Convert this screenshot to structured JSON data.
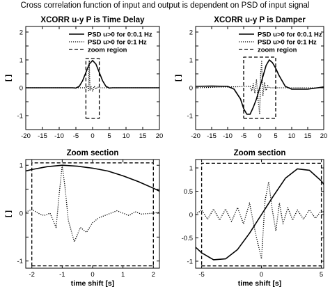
{
  "figure_title": "Cross correlation function of input and output is dependent on PSD of input signal",
  "chart_data": [
    {
      "type": "line",
      "title": "XCORR u-y P is Time Delay",
      "xlabel": "",
      "ylabel": "[ ]",
      "xlim": [
        -20,
        20
      ],
      "ylim": [
        -1.5,
        2.2
      ],
      "xticks": [
        -20,
        -15,
        -10,
        -5,
        0,
        5,
        10,
        15,
        20
      ],
      "yticks": [
        -1.5,
        -1,
        -0.5,
        0,
        0.5,
        1,
        1.5,
        2
      ],
      "ytick_labels": [
        "",
        "-1",
        "",
        "0",
        "",
        "1",
        "",
        "2"
      ],
      "legend": {
        "position": "top-right",
        "entries": [
          "PSD u>0 for 0:0.1 Hz",
          "PSD u>0 for 0:1 Hz",
          "zoom region"
        ]
      },
      "series": [
        {
          "name": "PSD u>0 for 0:0.1 Hz",
          "style": "solid",
          "x": [
            -20,
            -6,
            -5,
            -4,
            -3,
            -2,
            -1,
            0,
            1,
            2,
            3,
            4,
            5,
            6,
            20
          ],
          "y": [
            0,
            0,
            -0.01,
            0.05,
            0.25,
            0.55,
            0.85,
            0.98,
            0.85,
            0.55,
            0.25,
            0.05,
            -0.01,
            0,
            0
          ]
        },
        {
          "name": "PSD u>0 for 0:1 Hz",
          "style": "dotted",
          "x": [
            -20,
            -2,
            -1.5,
            -1.2,
            -1,
            -0.8,
            -0.5,
            0,
            0.5,
            1,
            1.5,
            2,
            20
          ],
          "y": [
            0,
            0,
            0.06,
            -0.1,
            0.98,
            -0.1,
            0.05,
            -0.12,
            0.06,
            -0.05,
            0.03,
            0,
            0
          ]
        },
        {
          "name": "zoom region",
          "style": "dashed",
          "x": [
            -2,
            2,
            2,
            -2,
            -2
          ],
          "y": [
            -1.1,
            -1.1,
            1.05,
            1.05,
            -1.1
          ]
        }
      ]
    },
    {
      "type": "line",
      "title": "XCORR u-y P is Damper",
      "xlabel": "",
      "ylabel": "[ ]",
      "xlim": [
        -20,
        20
      ],
      "ylim": [
        -1.5,
        2.2
      ],
      "xticks": [
        -20,
        -15,
        -10,
        -5,
        0,
        5,
        10,
        15,
        20
      ],
      "yticks": [
        -1.5,
        -1,
        -0.5,
        0,
        0.5,
        1,
        1.5,
        2
      ],
      "ytick_labels": [
        "",
        "-1",
        "",
        "0",
        "",
        "1",
        "",
        "2"
      ],
      "legend": {
        "position": "top-right",
        "entries": [
          "PSD u>0 for 0:0.1 Hz",
          "PSD u>0 for 0:1 Hz",
          "zoom region"
        ]
      },
      "series": [
        {
          "name": "PSD u>0 for 0:0.1 Hz",
          "style": "solid",
          "x": [
            -20,
            -15,
            -10,
            -8,
            -6,
            -5,
            -4,
            -3,
            -2,
            -1,
            0,
            1,
            2,
            3,
            4,
            5,
            6,
            8,
            10,
            15,
            20
          ],
          "y": [
            0.05,
            0.06,
            0.05,
            -0.05,
            -0.4,
            -0.75,
            -0.95,
            -0.95,
            -0.7,
            -0.4,
            0,
            0.4,
            0.8,
            1,
            0.9,
            0.7,
            0.45,
            0.05,
            -0.05,
            -0.05,
            0.03
          ]
        },
        {
          "name": "PSD u>0 for 0:1 Hz",
          "style": "dotted",
          "x": [
            -20,
            -3,
            -2.5,
            -2,
            -1.5,
            -1,
            -0.5,
            0,
            0.3,
            0.6,
            1,
            1.5,
            2,
            2.5,
            3,
            20
          ],
          "y": [
            0,
            0.05,
            -0.12,
            0.15,
            -0.2,
            0.28,
            -0.45,
            -0.95,
            0.5,
            0.95,
            -0.3,
            0.2,
            -0.1,
            0.08,
            0,
            0
          ]
        },
        {
          "name": "zoom region",
          "style": "dashed",
          "x": [
            -5,
            5,
            5,
            -5,
            -5
          ],
          "y": [
            -1.1,
            -1.1,
            1.1,
            1.1,
            -1.1
          ]
        }
      ]
    },
    {
      "type": "line",
      "title": "Zoom section",
      "xlabel": "time shift [s]",
      "ylabel": "[ ]",
      "xlim": [
        -2.2,
        2.2
      ],
      "ylim": [
        -1.15,
        1.12
      ],
      "xticks": [
        -2,
        -1,
        0,
        1,
        2
      ],
      "yticks": [
        -1,
        -0.5,
        0,
        0.5,
        1
      ],
      "ytick_labels": [
        "-1",
        "",
        "0",
        "",
        "1"
      ],
      "series": [
        {
          "name": "PSD u>0 for 0:0.1 Hz",
          "style": "solid",
          "x": [
            -2.2,
            -2,
            -1.5,
            -1,
            -0.5,
            0,
            0.5,
            1,
            1.5,
            2,
            2.2
          ],
          "y": [
            0.88,
            0.91,
            0.97,
            1.0,
            0.98,
            0.94,
            0.88,
            0.78,
            0.66,
            0.52,
            0.46
          ]
        },
        {
          "name": "PSD u>0 for 0:1 Hz",
          "style": "dotted",
          "x": [
            -2.2,
            -2,
            -1.8,
            -1.6,
            -1.4,
            -1.2,
            -1.1,
            -1,
            -0.9,
            -0.8,
            -0.6,
            -0.4,
            -0.2,
            0,
            0.2,
            0.4,
            0.6,
            0.8,
            1,
            1.2,
            1.4,
            1.6,
            1.8,
            2,
            2.2
          ],
          "y": [
            0.02,
            0.08,
            0,
            -0.05,
            0,
            -0.3,
            0.4,
            1.0,
            0.5,
            -0.15,
            -0.6,
            -0.3,
            -0.4,
            -0.2,
            -0.1,
            -0.05,
            0,
            0.05,
            0,
            -0.05,
            0.03,
            -0.02,
            -0.01,
            0,
            0.02
          ]
        },
        {
          "name": "zoom region",
          "style": "dashed",
          "x": [
            -2.0,
            2.0,
            2.0,
            -2.0,
            -2.0
          ],
          "y": [
            -1.1,
            -1.1,
            1.05,
            1.05,
            -1.1
          ]
        }
      ]
    },
    {
      "type": "line",
      "title": "Zoom section",
      "xlabel": "time shift [s]",
      "ylabel": "",
      "xlim": [
        -5.5,
        5.2
      ],
      "ylim": [
        -1.15,
        1.18
      ],
      "xticks": [
        -5,
        0,
        5
      ],
      "yticks": [
        -1,
        -0.5,
        0,
        0.5,
        1
      ],
      "ytick_labels": [
        "-1",
        "-0.5",
        "0",
        "0.5",
        "1"
      ],
      "series": [
        {
          "name": "PSD u>0 for 0:0.1 Hz",
          "style": "solid",
          "x": [
            -5.5,
            -5,
            -4,
            -3,
            -2,
            -1,
            0,
            1,
            2,
            3,
            4,
            5,
            5.2
          ],
          "y": [
            -0.7,
            -0.82,
            -0.97,
            -0.95,
            -0.75,
            -0.4,
            0,
            0.4,
            0.78,
            0.98,
            0.95,
            0.72,
            0.65
          ]
        },
        {
          "name": "PSD u>0 for 0:1 Hz",
          "style": "dotted",
          "x": [
            -5.5,
            -5,
            -4.5,
            -4,
            -3.5,
            -3,
            -2.5,
            -2,
            -1.5,
            -1,
            -0.5,
            0,
            0.3,
            0.6,
            0.9,
            1.2,
            1.5,
            1.8,
            2.2,
            2.6,
            3,
            3.5,
            4,
            4.5,
            5,
            5.2
          ],
          "y": [
            0,
            0.1,
            -0.1,
            0.12,
            -0.12,
            0.12,
            -0.15,
            0.15,
            -0.2,
            0.25,
            -0.4,
            -0.95,
            0.3,
            0.7,
            0.1,
            -0.35,
            0.25,
            -0.2,
            0.15,
            -0.12,
            0.1,
            -0.1,
            0.1,
            -0.08,
            0.08,
            0.05
          ]
        },
        {
          "name": "zoom region",
          "style": "dashed",
          "x": [
            -5,
            5,
            5,
            -5,
            -5
          ],
          "y": [
            -1.1,
            -1.1,
            1.1,
            1.1,
            -1.1
          ]
        }
      ]
    }
  ]
}
